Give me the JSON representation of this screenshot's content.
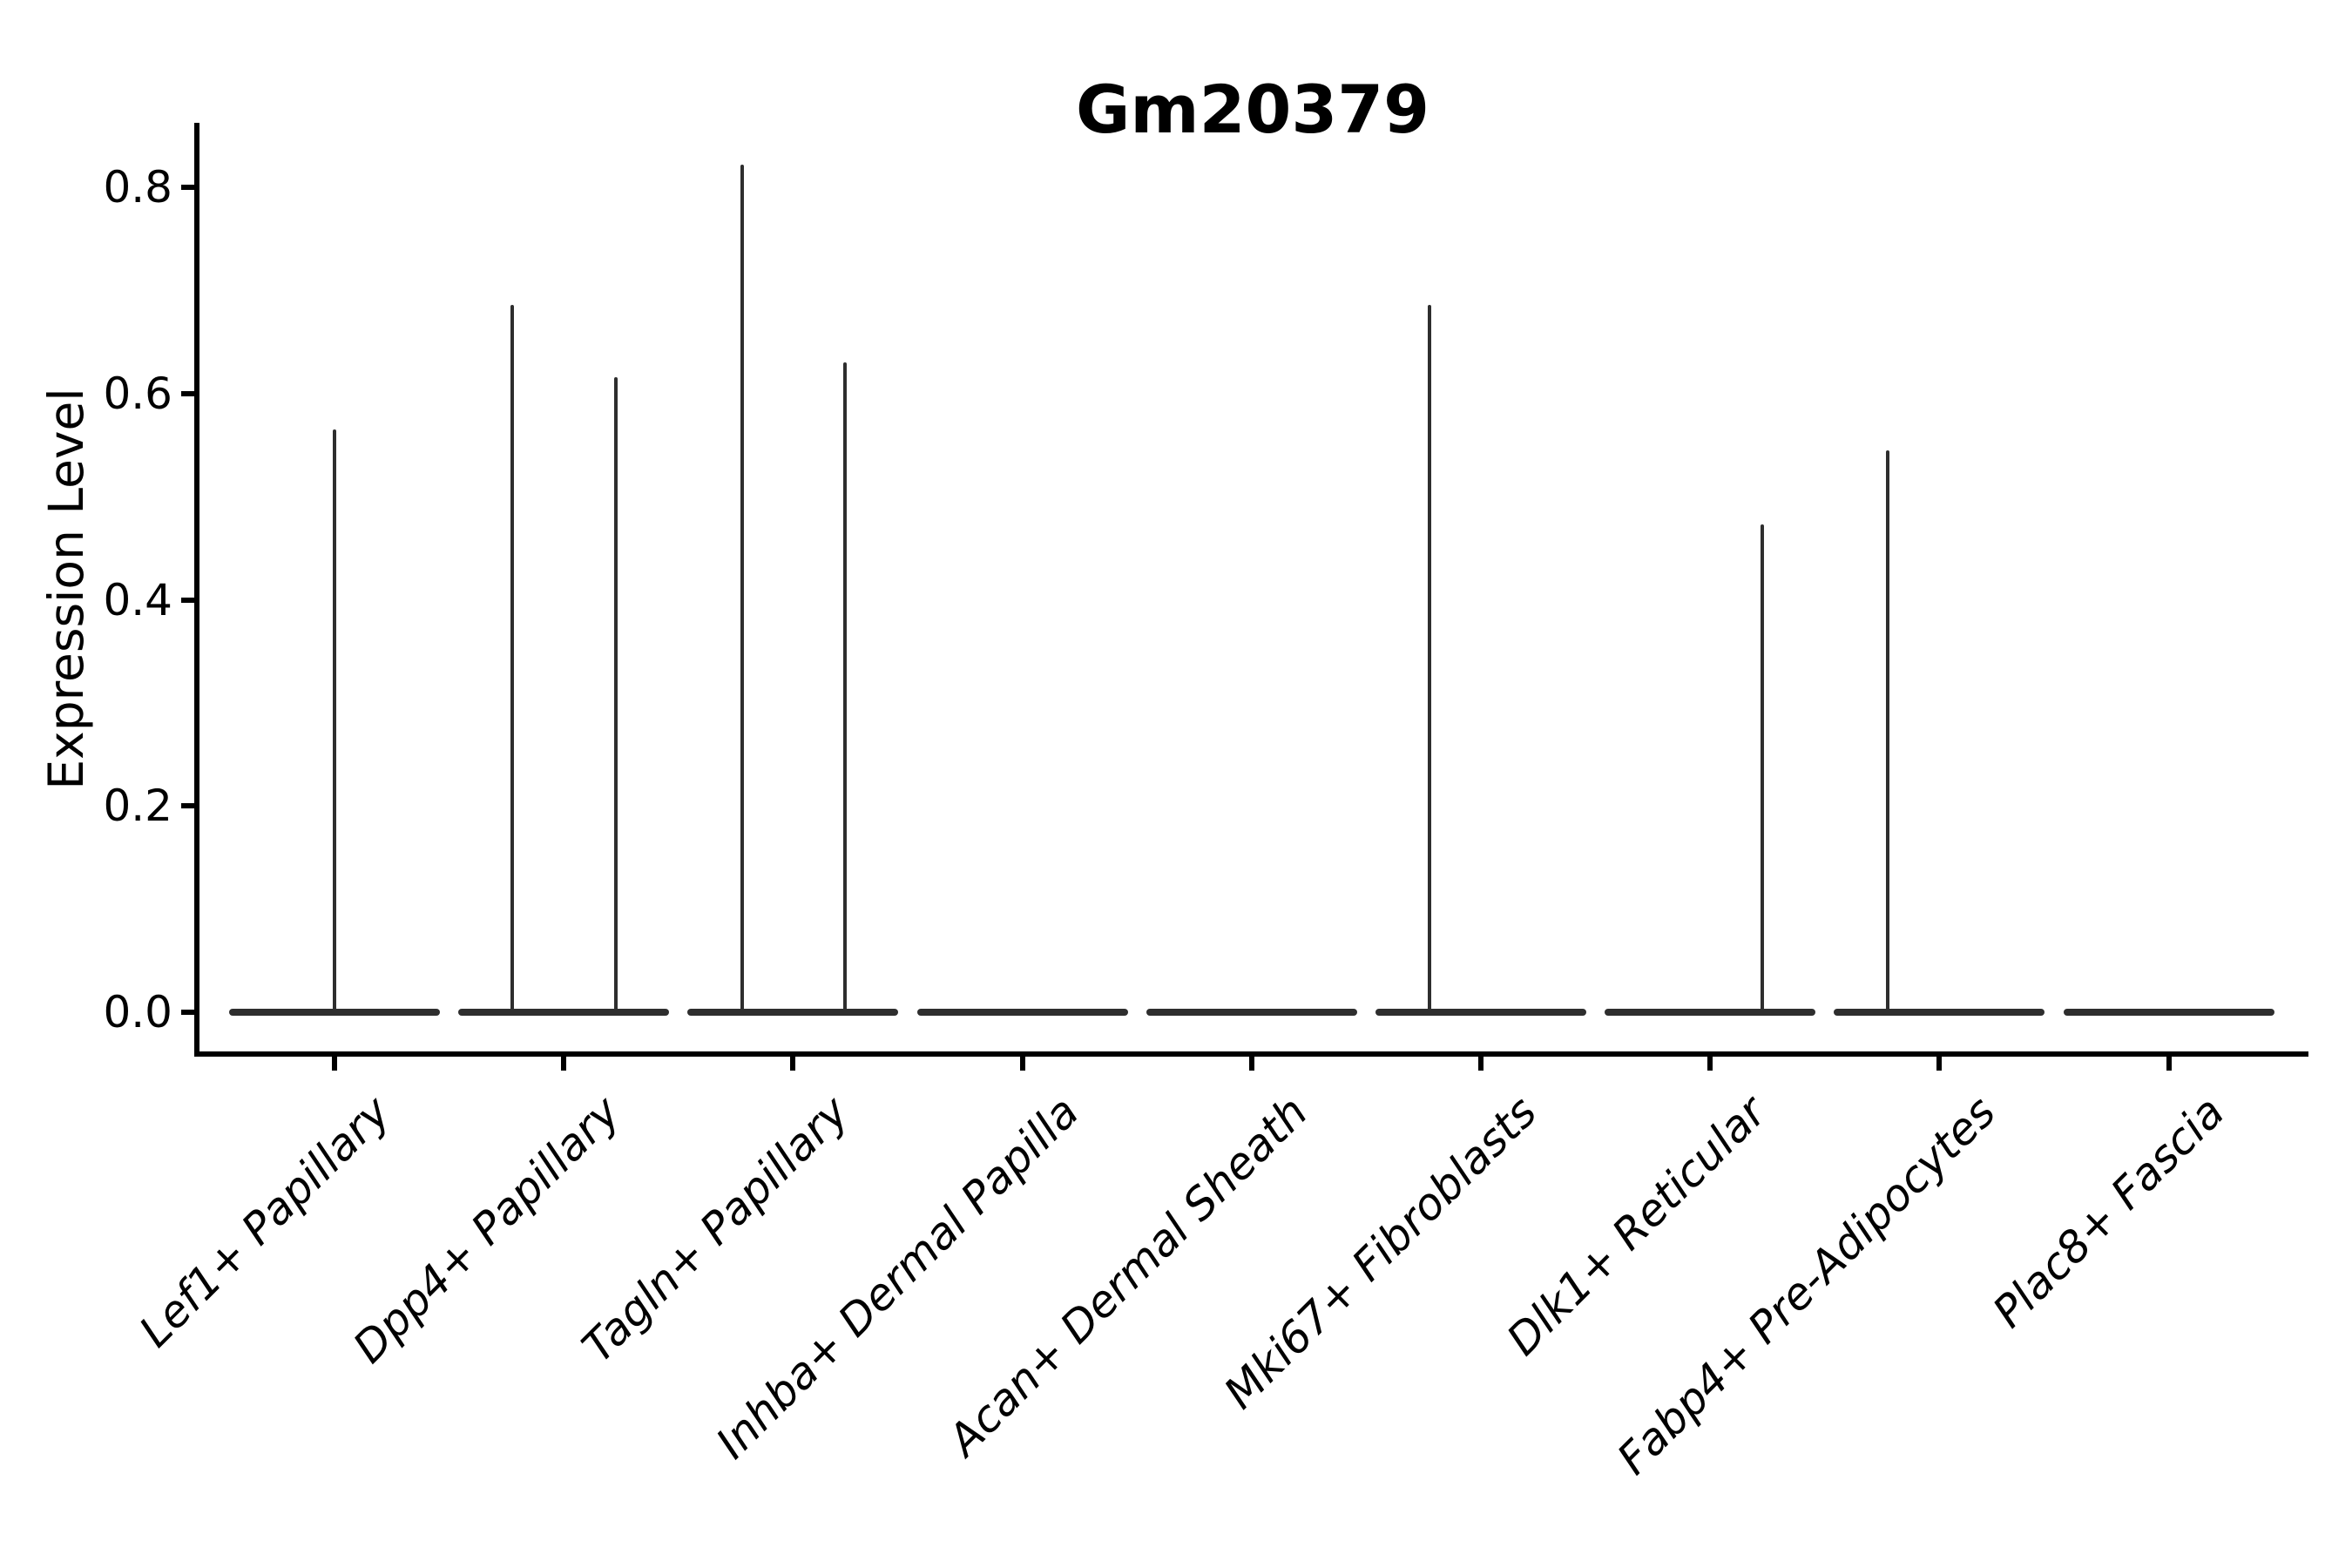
{
  "title": "Gm20379",
  "y_axis": {
    "label": "Expression Level",
    "tick_labels": [
      "0.0",
      "0.2",
      "0.4",
      "0.6",
      "0.8"
    ]
  },
  "x_axis": {
    "categories": [
      "Lef1+ Papillary",
      "Dpp4+ Papillary",
      "Tagln+ Papillary",
      "Inhba+ Dermal Papilla",
      "Acan+ Dermal Sheath",
      "Mki67+ Fibroblasts",
      "Dlk1+ Reticular",
      "Fabp4+ Pre-Adipocytes",
      "Plac8+ Fascia"
    ]
  },
  "colors": {
    "violin": "#2e2e2e",
    "axis": "#000000",
    "background": "#ffffff"
  },
  "chart_data": {
    "type": "violin",
    "title": "Gm20379",
    "xlabel": "",
    "ylabel": "Expression Level",
    "ylim": [
      -0.04,
      0.86
    ],
    "yticks": [
      0.0,
      0.2,
      0.4,
      0.6,
      0.8
    ],
    "grid": false,
    "legend": "none",
    "categories": [
      "Lef1+ Papillary",
      "Dpp4+ Papillary",
      "Tagln+ Papillary",
      "Inhba+ Dermal Papilla",
      "Acan+ Dermal Sheath",
      "Mki67+ Fibroblasts",
      "Dlk1+ Reticular",
      "Fabp4+ Pre-Adipocytes",
      "Plac8+ Fascia"
    ],
    "description": "Violin plot of Gm20379 expression; every cell type has a flat dense body at 0, some have thin spikes up to rare positive values.",
    "violins": [
      {
        "category": "Lef1+ Papillary",
        "body_value": 0.0,
        "spikes": [
          {
            "x_offset_frac": 0.0,
            "max_value": 0.565
          }
        ]
      },
      {
        "category": "Dpp4+ Papillary",
        "body_value": 0.0,
        "spikes": [
          {
            "x_offset_frac": -0.224,
            "max_value": 0.686
          },
          {
            "x_offset_frac": 0.228,
            "max_value": 0.616
          }
        ]
      },
      {
        "category": "Tagln+ Papillary",
        "body_value": 0.0,
        "spikes": [
          {
            "x_offset_frac": -0.22,
            "max_value": 0.822
          },
          {
            "x_offset_frac": 0.228,
            "max_value": 0.63
          }
        ]
      },
      {
        "category": "Inhba+ Dermal Papilla",
        "body_value": 0.0,
        "spikes": []
      },
      {
        "category": "Acan+ Dermal Sheath",
        "body_value": 0.0,
        "spikes": []
      },
      {
        "category": "Mki67+ Fibroblasts",
        "body_value": 0.0,
        "spikes": [
          {
            "x_offset_frac": -0.224,
            "max_value": 0.686
          }
        ]
      },
      {
        "category": "Dlk1+ Reticular",
        "body_value": 0.0,
        "spikes": [
          {
            "x_offset_frac": 0.227,
            "max_value": 0.473
          }
        ]
      },
      {
        "category": "Fabp4+ Pre-Adipocytes",
        "body_value": 0.0,
        "spikes": [
          {
            "x_offset_frac": -0.224,
            "max_value": 0.545
          }
        ]
      },
      {
        "category": "Plac8+ Fascia",
        "body_value": 0.0,
        "spikes": []
      }
    ]
  }
}
